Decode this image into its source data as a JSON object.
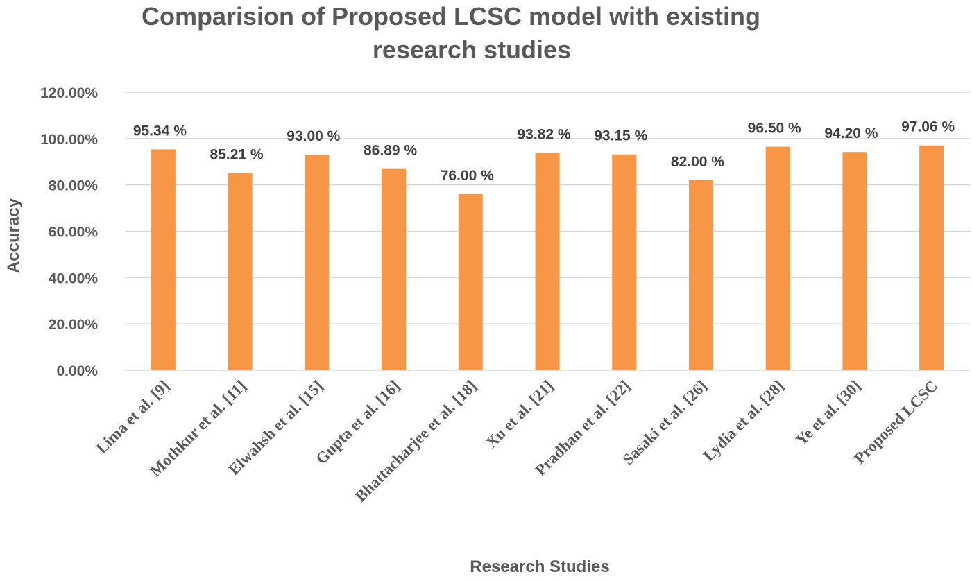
{
  "chart_data": {
    "type": "bar",
    "title_lines": [
      "Comparision of Proposed LCSC model with existing",
      "research studies"
    ],
    "xlabel": "Research Studies",
    "ylabel": "Accuracy",
    "ylim": [
      0,
      120
    ],
    "y_ticks": [
      0,
      20,
      40,
      60,
      80,
      100,
      120
    ],
    "y_tick_labels": [
      "0.00%",
      "20.00%",
      "40.00%",
      "60.00%",
      "80.00%",
      "100.00%",
      "120.00%"
    ],
    "grid": true,
    "legend": "none",
    "bar_color": "#f79646",
    "categories": [
      "Lima et al. [9]",
      "Mothkur et al. [11]",
      "Elwahsh et al. [15]",
      "Gupta et al. [16]",
      "Bhattacharjee et al. [18]",
      "Xu et al.  [21]",
      "Pradhan et al. [22]",
      "Sasaki  et al. [26]",
      "Lydia et al. [28]",
      "Ye et al. [30]",
      "Proposed LCSC"
    ],
    "values": [
      95.34,
      85.21,
      93.0,
      86.89,
      76.0,
      93.82,
      93.15,
      82.0,
      96.5,
      94.2,
      97.06
    ],
    "data_labels": [
      "95.34 %",
      "85.21 %",
      "93.00 %",
      "86.89 %",
      "76.00 %",
      "93.82 %",
      "93.15 %",
      "82.00 %",
      "96.50 %",
      "94.20 %",
      "97.06 %"
    ]
  }
}
